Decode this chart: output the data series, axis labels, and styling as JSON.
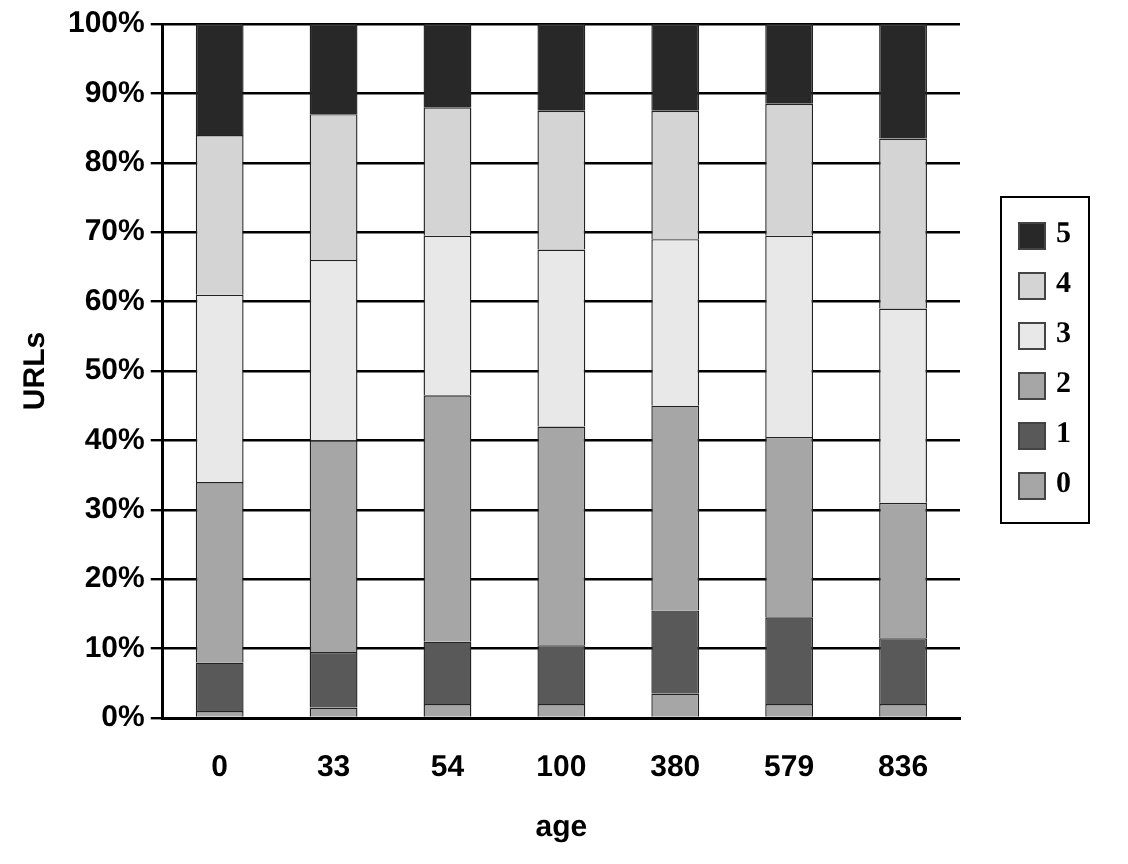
{
  "chart_data": {
    "type": "bar",
    "stacked": true,
    "xlabel": "age",
    "ylabel": "URLs",
    "categories": [
      "0",
      "33",
      "54",
      "100",
      "380",
      "579",
      "836"
    ],
    "series": [
      {
        "name": "0",
        "color": "#a6a6a6",
        "values": [
          1,
          1.5,
          2,
          2,
          3.5,
          2,
          2
        ]
      },
      {
        "name": "1",
        "color": "#595959",
        "values": [
          7,
          8,
          9,
          8.5,
          12,
          12.5,
          9.5
        ]
      },
      {
        "name": "2",
        "color": "#a6a6a6",
        "values": [
          26,
          30.5,
          35.5,
          31.5,
          29.5,
          26,
          19.5
        ]
      },
      {
        "name": "3",
        "color": "#e8e8e8",
        "values": [
          27,
          26,
          23,
          25.5,
          24,
          29,
          28
        ]
      },
      {
        "name": "4",
        "color": "#d4d4d4",
        "values": [
          23,
          21,
          18.5,
          20,
          18.5,
          19,
          24.5
        ]
      },
      {
        "name": "5",
        "color": "#282828",
        "values": [
          16,
          13,
          12,
          12.5,
          12.5,
          11.5,
          16.5
        ]
      }
    ],
    "ylim": [
      0,
      100
    ],
    "yticks": [
      {
        "value": 0,
        "label": "0%"
      },
      {
        "value": 10,
        "label": "10%"
      },
      {
        "value": 20,
        "label": "20%"
      },
      {
        "value": 30,
        "label": "30%"
      },
      {
        "value": 40,
        "label": "40%"
      },
      {
        "value": 50,
        "label": "50%"
      },
      {
        "value": 60,
        "label": "60%"
      },
      {
        "value": 70,
        "label": "70%"
      },
      {
        "value": 80,
        "label": "80%"
      },
      {
        "value": 90,
        "label": "90%"
      },
      {
        "value": 100,
        "label": "100%"
      }
    ],
    "grid": "y",
    "legend": "right"
  }
}
